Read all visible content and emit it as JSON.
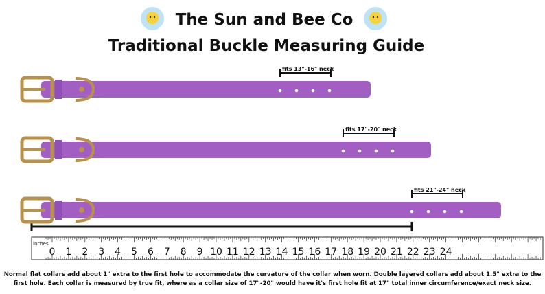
{
  "header": {
    "title": "The Sun and Bee Co",
    "subtitle": "Traditional Buckle Measuring Guide"
  },
  "collars": [
    {
      "fit_label": "fits 13\"-16\" neck"
    },
    {
      "fit_label": "fits 17\"-20\" neck"
    },
    {
      "fit_label": "fits 21\"-24\" neck"
    }
  ],
  "ruler": {
    "unit_label": "inches",
    "numbers": [
      0,
      1,
      2,
      3,
      4,
      5,
      6,
      7,
      8,
      9,
      10,
      11,
      12,
      13,
      14,
      15,
      16,
      17,
      18,
      19,
      20,
      21,
      22,
      23,
      24
    ]
  },
  "footnote": [
    "Normal flat collars add about 1\" extra to the first hole to accommodate the curvature of the collar when worn. Double layered collars add about 1.5\" extra to the",
    "first hole.  Each collar is measured by true fit, where as a collar size of 17\"-20\" would have it's first hole fit at 17\" total inner circumference/exact neck size."
  ]
}
